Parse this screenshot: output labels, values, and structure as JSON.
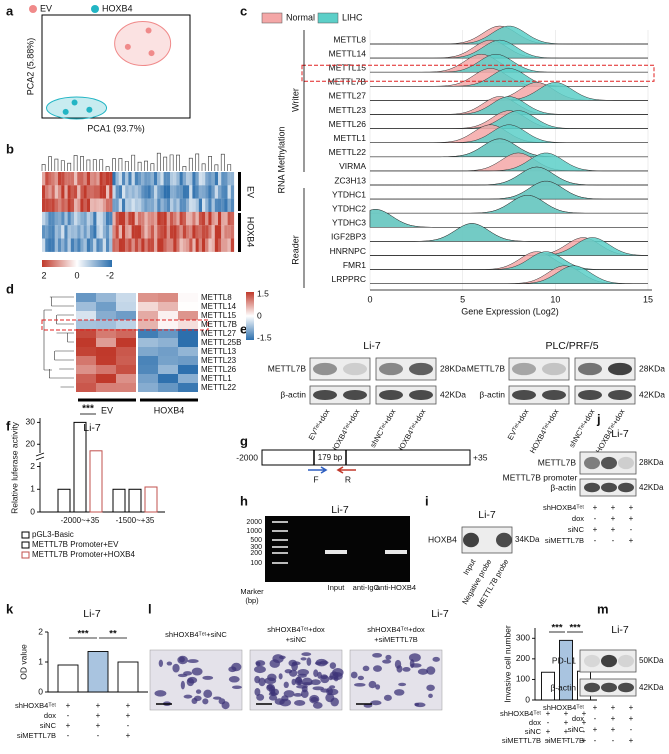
{
  "figure": {
    "panel_labels": [
      "a",
      "b",
      "c",
      "d",
      "e",
      "f",
      "g",
      "h",
      "i",
      "j",
      "k",
      "l",
      "m"
    ],
    "b": {
      "scale": [
        "2",
        "0",
        "-2"
      ],
      "groups": [
        "EV",
        "HOXB4"
      ]
    },
    "d": {
      "genes": [
        "METTL8",
        "METTL14",
        "METTL15",
        "METTL7B",
        "METTL27",
        "METTL25B",
        "METTL13",
        "METTL23",
        "METTL26",
        "METTL1",
        "METTL22"
      ],
      "scale": [
        "1.5",
        "0",
        "-1.5"
      ],
      "groups": [
        "EV",
        "HOXB4"
      ]
    },
    "e": {
      "blots": [
        {
          "title": "Li-7",
          "rows": [
            "METTL7B",
            "β-actin"
          ],
          "sizes": [
            "28KDa",
            "42KDa"
          ],
          "lanes": [
            "EVᵀᵉᵗ+dox",
            "HOXB4ᵀᵉᵗ+dox",
            "shNCᵀᵉᵗ+dox",
            "shHOXB4ᵀᵉᵗ+dox"
          ]
        },
        {
          "title": "PLC/PRF/5",
          "rows": [
            "METTL7B",
            "β-actin"
          ],
          "sizes": [
            "28KDa",
            "42KDa"
          ],
          "lanes": [
            "EVᵀᵉᵗ+dox",
            "HOXB4ᵀᵉᵗ+dox",
            "shNCᵀᵉᵗ+dox",
            "shHOXB4ᵀᵉᵗ+dox"
          ]
        }
      ]
    },
    "g": {
      "start": "-2000",
      "end": "+35",
      "length": "179 bp",
      "forward": "F",
      "reverse": "R",
      "name": "METTL7B promoter"
    },
    "h": {
      "title": "Li-7",
      "ladder": [
        "2000",
        "1000",
        "500",
        "300",
        "200",
        "100"
      ],
      "marker": [
        "Marker",
        "(bp)"
      ],
      "lanes": [
        "Input",
        "anti-IgG",
        "anti-HOXB4"
      ]
    },
    "i": {
      "title": "Li-7",
      "protein": "HOXB4",
      "size": "34KDa",
      "lanes": [
        "Input",
        "Negative probe",
        "METTL7B probe"
      ]
    },
    "j": {
      "title": "Li-7",
      "rows": [
        "METTL7B",
        "β-actin"
      ],
      "sizes": [
        "28KDa",
        "42KDa"
      ],
      "conditions": {
        "rows": [
          "shHOXB4ᵀᵉᵗ",
          "dox",
          "siNC",
          "siMETTL7B"
        ],
        "signs": [
          [
            "+",
            "+",
            "+"
          ],
          [
            "-",
            "+",
            "+"
          ],
          [
            "+",
            "+",
            "-"
          ],
          [
            "-",
            "-",
            "+"
          ]
        ]
      }
    },
    "l": {
      "captions": [
        [
          "shHOXB4ᵀᵉᵗ+siNC"
        ],
        [
          "shHOXB4ᵀᵉᵗ+dox",
          "+siNC"
        ],
        [
          "shHOXB4ᵀᵉᵗ+dox",
          "+siMETTL7B"
        ]
      ]
    },
    "m": {
      "title": "Li-7",
      "rows": [
        "PD-L1",
        "β-actin"
      ],
      "sizes": [
        "50KDa",
        "42KDa"
      ],
      "conditions": {
        "rows": [
          "shHOXB4ᵀᵉᵗ",
          "dox",
          "siNC",
          "siMETTL7B"
        ],
        "signs": [
          [
            "+",
            "+",
            "+"
          ],
          [
            "-",
            "+",
            "+"
          ],
          [
            "+",
            "+",
            "-"
          ],
          [
            "-",
            "-",
            "+"
          ]
        ]
      }
    }
  },
  "chart_data": [
    {
      "type": "scatter",
      "xlabel": "PCA1 (93.7%)",
      "ylabel": "PCA2 (5.88%)",
      "xlim": [
        0,
        1
      ],
      "ylim": [
        0,
        1
      ],
      "series": [
        {
          "name": "EV",
          "color": "#f08a8a",
          "x": [
            0.72,
            0.58,
            0.74
          ],
          "values": [
            0.85,
            0.69,
            0.63
          ]
        },
        {
          "name": "HOXB4",
          "color": "#22b5c4",
          "x": [
            0.22,
            0.32,
            0.16
          ],
          "values": [
            0.15,
            0.08,
            0.06
          ]
        }
      ]
    },
    {
      "type": "ridgeline",
      "ylabel": "RNA Methylation",
      "xlabel": "Gene Expression (Log2)",
      "group_labels": [
        "Writer",
        "Reader"
      ],
      "categories": [
        "METTL8",
        "METTL14",
        "METTL15",
        "METTL7B",
        "METTL27",
        "METTL23",
        "METTL26",
        "METTL1",
        "METTL22",
        "VIRMA",
        "ZC3H13",
        "YTDHC1",
        "YTDHC2",
        "YTDHC3",
        "IGF2BP3",
        "HNRNPC",
        "FMR1",
        "LRPPRC"
      ],
      "xlim": [
        0,
        15
      ],
      "xticks": [
        0,
        5,
        10,
        15
      ],
      "series": [
        {
          "name": "Normal",
          "color": "#f4a7a7",
          "values": [
            7,
            6.5,
            6,
            6.5,
            9,
            7,
            7.5,
            6.5,
            7,
            8,
            9,
            9.5,
            8.5,
            0.3,
            5.5,
            11.5,
            9,
            10.5
          ]
        },
        {
          "name": "LIHC",
          "color": "#5ccfc8",
          "values": [
            7.5,
            7,
            6.8,
            7.5,
            10,
            7.5,
            8,
            7.5,
            7,
            9.5,
            9,
            9.5,
            8.5,
            0.3,
            5.5,
            12,
            9.5,
            11
          ]
        }
      ]
    },
    {
      "type": "grouped_bar",
      "title": "Li-7",
      "ylabel": "Relative luferase activity",
      "categories": [
        "-2000~+35",
        "-1500~+35"
      ],
      "ylim": [
        0,
        32
      ],
      "axis_break": [
        2.2,
        16
      ],
      "yticks": [
        0,
        1,
        2,
        20,
        30
      ],
      "annotations": [
        "***"
      ],
      "series": [
        {
          "name": "pGL3-Basic",
          "color": "#000000",
          "values": [
            1,
            1
          ]
        },
        {
          "name": "METTL7B Promoter+EV",
          "color": "#000000",
          "values": [
            30,
            1
          ]
        },
        {
          "name": "METTL7B Promoter+HOXB4",
          "color": "#c0504d",
          "values": [
            17,
            1.1
          ]
        }
      ]
    },
    {
      "type": "bar",
      "title": "Li-7",
      "ylabel": "OD value",
      "categories": [
        null,
        null,
        null
      ],
      "values": [
        0.9,
        1.35,
        1.0
      ],
      "colors": [
        "#ffffff",
        "#a9c4e0",
        "#ffffff"
      ],
      "ylim": [
        0,
        2
      ],
      "yticks": [
        0,
        1,
        2
      ],
      "annotations": [
        "***",
        "**"
      ],
      "conditions": {
        "rows": [
          "shHOXB4ᵀᵉᵗ",
          "dox",
          "siNC",
          "siMETTL7B"
        ],
        "signs": [
          [
            "+",
            "+",
            "+"
          ],
          [
            "-",
            "+",
            "+"
          ],
          [
            "+",
            "+",
            "-"
          ],
          [
            "-",
            "-",
            "+"
          ]
        ]
      }
    },
    {
      "type": "bar",
      "title": "Li-7",
      "ylabel": "Invasive cell number",
      "categories": [
        null,
        null,
        null
      ],
      "values": [
        135,
        290,
        140
      ],
      "colors": [
        "#ffffff",
        "#a9c4e0",
        "#ffffff"
      ],
      "ylim": [
        0,
        350
      ],
      "yticks": [
        0,
        100,
        200,
        300
      ],
      "annotations": [
        "***",
        "***"
      ],
      "conditions": {
        "rows": [
          "shHOXB4ᵀᵉᵗ",
          "dox",
          "siNC",
          "siMETTL7B"
        ],
        "signs": [
          [
            "+",
            "+",
            "+"
          ],
          [
            "-",
            "+",
            "+"
          ],
          [
            "+",
            "+",
            "-"
          ],
          [
            "-",
            "-",
            "+"
          ]
        ]
      }
    }
  ]
}
